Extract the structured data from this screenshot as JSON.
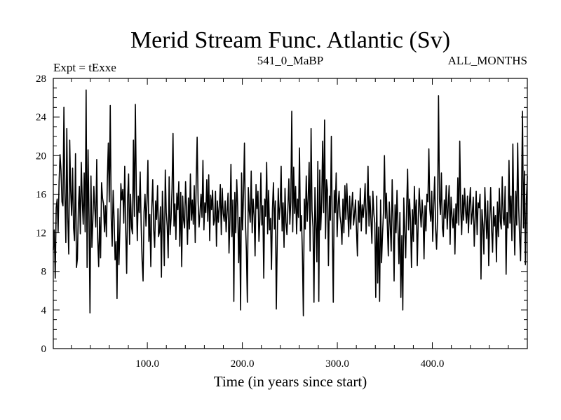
{
  "chart_data": {
    "type": "line",
    "title": "Merid Stream Func. Atlantic (Sv)",
    "subtitle_left": "Expt = tExxe",
    "subtitle_center": "541_0_MaBP",
    "subtitle_right": "ALL_MONTHS",
    "xlabel": "Time (in years since start)",
    "ylabel": "",
    "xlim": [
      1,
      500
    ],
    "ylim": [
      0,
      28
    ],
    "x_ticks": [
      100,
      200,
      300,
      400
    ],
    "x_tick_labels": [
      "100.0",
      "200.0",
      "300.0",
      "400.0"
    ],
    "y_ticks": [
      0,
      4,
      8,
      12,
      16,
      20,
      24,
      28
    ],
    "y_tick_labels": [
      "0",
      "4",
      "8",
      "12",
      "16",
      "20",
      "24",
      "28"
    ],
    "grid": false,
    "series": [
      {
        "name": "Merid Stream Func. Atlantic",
        "x_start": 1,
        "x_step": 1,
        "values": [
          10.2,
          12.3,
          7.3,
          14.6,
          15.5,
          12.1,
          17.3,
          20.1,
          18.4,
          15.2,
          14.8,
          25.0,
          16.1,
          11.0,
          22.8,
          13.6,
          9.8,
          21.6,
          16.4,
          13.8,
          18.7,
          12.5,
          11.2,
          20.2,
          8.4,
          9.3,
          14.7,
          16.8,
          11.9,
          19.3,
          15.3,
          12.9,
          18.2,
          12.1,
          26.8,
          8.4,
          20.6,
          13.7,
          3.7,
          17.9,
          10.5,
          13.3,
          16.8,
          14.5,
          12.6,
          19.6,
          11.4,
          8.5,
          13.6,
          9.4,
          17.2,
          15.6,
          15.0,
          12.1,
          14.8,
          11.6,
          17.6,
          21.3,
          15.2,
          25.2,
          13.5,
          10.6,
          16.4,
          13.4,
          9.2,
          11.1,
          5.2,
          14.5,
          8.7,
          12.5,
          17.1,
          15.4,
          16.5,
          13.0,
          18.9,
          12.3,
          7.8,
          15.6,
          18.1,
          10.8,
          16.0,
          12.6,
          11.9,
          21.6,
          13.7,
          25.3,
          16.5,
          11.2,
          15.8,
          14.1,
          18.3,
          12.8,
          9.1,
          7.0,
          14.2,
          16.0,
          12.7,
          15.2,
          19.5,
          11.1,
          13.9,
          8.5,
          14.6,
          17.5,
          12.3,
          10.5,
          15.3,
          13.4,
          16.9,
          11.6,
          12.1,
          14.7,
          7.4,
          16.3,
          13.0,
          8.6,
          18.5,
          14.1,
          12.7,
          9.4,
          17.8,
          11.8,
          13.5,
          16.6,
          22.3,
          12.7,
          15.0,
          11.3,
          16.1,
          14.4,
          17.3,
          10.6,
          16.2,
          8.5,
          15.8,
          13.3,
          12.5,
          17.3,
          14.3,
          10.8,
          15.6,
          12.4,
          18.1,
          13.3,
          15.4,
          12.9,
          16.9,
          11.0,
          17.2,
          21.9,
          15.2,
          12.6,
          14.2,
          16.0,
          13.6,
          19.5,
          12.3,
          15.1,
          14.1,
          17.5,
          13.2,
          18.0,
          11.2,
          15.9,
          14.4,
          16.4,
          12.8,
          13.3,
          16.3,
          10.6,
          15.3,
          13.1,
          14.8,
          17.0,
          11.8,
          16.6,
          14.0,
          13.2,
          15.3,
          12.1,
          14.2,
          16.1,
          9.9,
          13.4,
          19.1,
          11.6,
          15.4,
          4.9,
          16.2,
          12.0,
          17.5,
          14.7,
          8.9,
          13.6,
          4.0,
          18.2,
          12.3,
          15.9,
          21.3,
          13.2,
          10.1,
          4.8,
          16.7,
          14.3,
          13.1,
          18.4,
          12.0,
          15.5,
          13.8,
          9.6,
          17.0,
          14.5,
          16.3,
          11.1,
          13.4,
          18.2,
          12.8,
          14.8,
          7.3,
          15.5,
          13.7,
          19.3,
          11.9,
          16.4,
          12.3,
          13.5,
          8.2,
          14.5,
          17.2,
          12.4,
          15.3,
          4.1,
          11.5,
          16.6,
          13.4,
          14.7,
          18.9,
          12.2,
          15.1,
          10.5,
          16.6,
          13.1,
          11.8,
          14.6,
          17.6,
          12.9,
          15.2,
          24.6,
          12.1,
          18.8,
          14.0,
          16.8,
          11.9,
          15.5,
          13.6,
          20.8,
          12.2,
          13.8,
          9.9,
          3.4,
          15.5,
          12.4,
          17.9,
          13.2,
          15.6,
          19.3,
          10.1,
          22.8,
          14.3,
          12.6,
          4.8,
          16.7,
          13.0,
          9.0,
          19.4,
          4.9,
          18.5,
          12.3,
          15.3,
          21.5,
          14.1,
          23.7,
          11.4,
          17.5,
          16.4,
          8.6,
          15.8,
          13.3,
          22.0,
          12.4,
          4.8,
          16.4,
          14.1,
          18.2,
          11.6,
          14.9,
          16.3,
          13.7,
          12.9,
          10.8,
          15.5,
          12.0,
          16.9,
          13.4,
          17.1,
          14.3,
          11.6,
          15.8,
          12.4,
          14.6,
          16.2,
          12.8,
          13.9,
          15.4,
          12.4,
          9.6,
          15.3,
          13.1,
          16.6,
          12.2,
          14.9,
          13.6,
          15.0,
          17.1,
          11.9,
          14.6,
          18.9,
          12.7,
          15.8,
          13.4,
          10.9,
          16.3,
          14.0,
          13.0,
          5.3,
          15.8,
          6.8,
          12.6,
          4.9,
          15.4,
          8.9,
          11.8,
          14.2,
          20.0,
          13.5,
          16.1,
          12.8,
          9.6,
          15.2,
          12.7,
          10.1,
          17.5,
          13.1,
          7.0,
          14.9,
          12.0,
          16.4,
          12.6,
          8.8,
          14.1,
          5.3,
          11.7,
          4.0,
          15.6,
          12.3,
          9.4,
          14.6,
          18.6,
          12.3,
          15.5,
          13.2,
          8.4,
          14.4,
          11.1,
          16.8,
          12.9,
          15.4,
          8.6,
          13.3,
          16.6,
          14.3,
          12.6,
          15.4,
          13.6,
          9.3,
          14.8,
          12.2,
          16.0,
          15.2,
          20.7,
          14.4,
          13.2,
          16.3,
          11.1,
          14.8,
          17.8,
          12.4,
          10.3,
          13.6,
          26.2,
          15.5,
          13.9,
          18.2,
          12.6,
          11.6,
          15.4,
          13.5,
          16.9,
          12.4,
          14.7,
          16.9,
          10.8,
          15.7,
          13.7,
          12.5,
          14.5,
          9.8,
          15.0,
          13.0,
          17.7,
          12.8,
          21.5,
          14.5,
          11.8,
          15.9,
          13.3,
          16.6,
          14.3,
          13.0,
          15.8,
          12.0,
          14.8,
          16.7,
          12.9,
          14.0,
          15.7,
          10.6,
          13.5,
          16.3,
          11.8,
          15.1,
          14.6,
          16.0,
          7.2,
          14.4,
          12.8,
          9.8,
          16.7,
          13.8,
          11.4,
          15.3,
          8.6,
          13.2,
          16.7,
          12.4,
          10.0,
          14.7,
          12.7,
          13.8,
          9.0,
          15.2,
          11.6,
          16.6,
          13.2,
          12.4,
          17.8,
          13.5,
          12.8,
          16.8,
          7.7,
          14.1,
          12.5,
          19.5,
          13.0,
          15.8,
          11.2,
          21.2,
          13.9,
          9.7,
          16.3,
          12.8,
          21.3,
          14.8,
          11.6,
          9.1,
          16.0,
          24.6,
          12.5,
          18.4,
          8.7,
          15.4,
          17.9
        ]
      }
    ]
  }
}
